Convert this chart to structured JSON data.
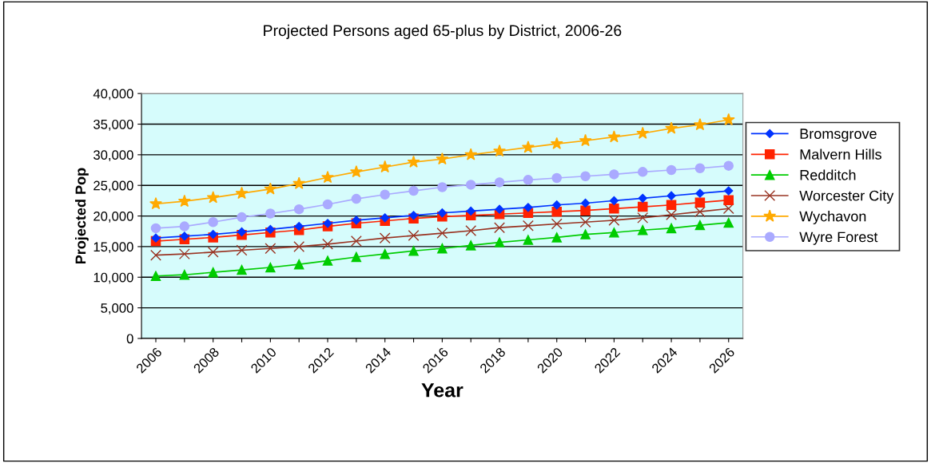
{
  "chart_data": {
    "type": "line",
    "title": "Projected Persons aged 65-plus by District, 2006-26",
    "xlabel": "Year",
    "ylabel": "Projected Pop",
    "categories": [
      "2006",
      null,
      "2008",
      null,
      "2010",
      null,
      "2012",
      null,
      "2014",
      null,
      "2016",
      null,
      "2018",
      null,
      "2020",
      null,
      "2022",
      null,
      "2024",
      null,
      "2026"
    ],
    "series": [
      {
        "name": "Bromsgrove",
        "color": "#0033ff",
        "marker": "diamond",
        "values": [
          16400,
          16700,
          17000,
          17400,
          17800,
          18300,
          18800,
          19300,
          19700,
          20100,
          20500,
          20800,
          21100,
          21400,
          21800,
          22100,
          22500,
          22900,
          23300,
          23700,
          24100
        ]
      },
      {
        "name": "Malvern Hills",
        "color": "#ff2200",
        "marker": "square",
        "values": [
          15900,
          16200,
          16500,
          16900,
          17300,
          17700,
          18300,
          18800,
          19200,
          19600,
          19900,
          20100,
          20300,
          20500,
          20700,
          20900,
          21200,
          21500,
          21800,
          22200,
          22600
        ]
      },
      {
        "name": "Redditch",
        "color": "#00cc00",
        "marker": "triangle",
        "values": [
          10200,
          10400,
          10800,
          11200,
          11600,
          12100,
          12700,
          13300,
          13800,
          14300,
          14700,
          15200,
          15700,
          16100,
          16500,
          17000,
          17300,
          17700,
          18000,
          18500,
          18900
        ]
      },
      {
        "name": "Worcester City",
        "color": "#993322",
        "marker": "cross",
        "values": [
          13600,
          13800,
          14100,
          14400,
          14700,
          15000,
          15400,
          15900,
          16400,
          16800,
          17200,
          17600,
          18100,
          18400,
          18700,
          19000,
          19300,
          19700,
          20200,
          20700,
          21200
        ]
      },
      {
        "name": "Wychavon",
        "color": "#ffaa00",
        "marker": "star",
        "values": [
          22000,
          22400,
          23000,
          23700,
          24400,
          25300,
          26300,
          27200,
          28000,
          28800,
          29300,
          30000,
          30600,
          31200,
          31800,
          32300,
          32900,
          33500,
          34300,
          34900,
          35700
        ]
      },
      {
        "name": "Wyre Forest",
        "color": "#aaaaff",
        "marker": "circle",
        "values": [
          18000,
          18300,
          19000,
          19800,
          20400,
          21100,
          21900,
          22800,
          23500,
          24100,
          24700,
          25100,
          25500,
          25900,
          26200,
          26500,
          26800,
          27200,
          27500,
          27800,
          28200
        ]
      }
    ],
    "ylim": [
      0,
      40000
    ],
    "yticks": [
      {
        "value": 0,
        "label": "0"
      },
      {
        "value": 5000,
        "label": "5,000"
      },
      {
        "value": 10000,
        "label": "10,000"
      },
      {
        "value": 15000,
        "label": "15,000"
      },
      {
        "value": 20000,
        "label": "20,000"
      },
      {
        "value": 25000,
        "label": "25,000"
      },
      {
        "value": 30000,
        "label": "30,000"
      },
      {
        "value": 35000,
        "label": "35,000"
      },
      {
        "value": 40000,
        "label": "40,000"
      }
    ],
    "grid": "y",
    "legend": "right"
  }
}
